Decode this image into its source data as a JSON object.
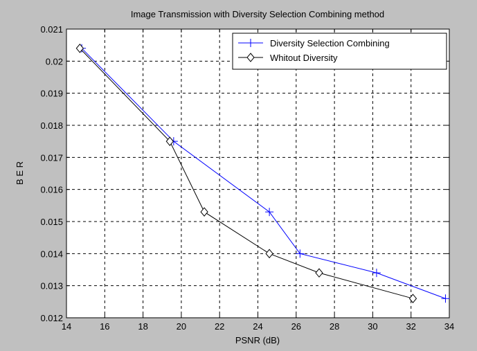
{
  "chart_data": {
    "type": "line",
    "title": "Image Transmission with Diversity Selection Combining method",
    "xlabel": "PSNR (dB)",
    "ylabel": "B E R",
    "xlim": [
      14,
      34
    ],
    "ylim": [
      0.012,
      0.021
    ],
    "xticks": [
      14,
      16,
      18,
      20,
      22,
      24,
      26,
      28,
      30,
      32,
      34
    ],
    "yticks": [
      0.012,
      0.013,
      0.014,
      0.015,
      0.016,
      0.017,
      0.018,
      0.019,
      0.02,
      0.021
    ],
    "xtick_labels": [
      "14",
      "16",
      "18",
      "20",
      "22",
      "24",
      "26",
      "28",
      "30",
      "32",
      "34"
    ],
    "ytick_labels": [
      "0.012",
      "0.013",
      "0.014",
      "0.015",
      "0.016",
      "0.017",
      "0.018",
      "0.019",
      "0.02",
      "0.021"
    ],
    "grid": true,
    "legend_position": "top-right",
    "series": [
      {
        "name": "Diversity Selection Combining",
        "color": "#0000ff",
        "marker": "plus",
        "x": [
          14.8,
          19.6,
          24.6,
          26.2,
          30.2,
          33.8
        ],
        "y": [
          0.0204,
          0.0175,
          0.0153,
          0.014,
          0.0134,
          0.0126
        ]
      },
      {
        "name": "Whitout Diversity",
        "color": "#000000",
        "marker": "diamond",
        "x": [
          14.7,
          19.4,
          21.2,
          24.6,
          27.2,
          32.1
        ],
        "y": [
          0.0204,
          0.0175,
          0.0153,
          0.014,
          0.0134,
          0.0126
        ]
      }
    ]
  }
}
